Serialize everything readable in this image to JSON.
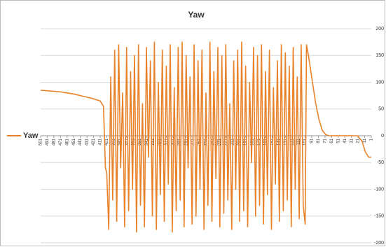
{
  "chart_data": {
    "type": "line",
    "title": "Yaw",
    "x": [
      501,
      491,
      481,
      471,
      461,
      451,
      441,
      431,
      421,
      411,
      406,
      403,
      401,
      398,
      395,
      392,
      389,
      386,
      383,
      380,
      377,
      374,
      371,
      368,
      365,
      362,
      359,
      356,
      353,
      350,
      347,
      344,
      341,
      338,
      335,
      332,
      329,
      326,
      323,
      320,
      317,
      314,
      311,
      308,
      305,
      302,
      299,
      296,
      293,
      290,
      287,
      284,
      281,
      278,
      275,
      272,
      269,
      266,
      263,
      260,
      257,
      254,
      251,
      248,
      245,
      242,
      239,
      236,
      233,
      230,
      227,
      224,
      221,
      218,
      215,
      212,
      209,
      206,
      203,
      200,
      197,
      194,
      191,
      188,
      185,
      182,
      179,
      176,
      173,
      170,
      167,
      164,
      161,
      158,
      155,
      152,
      149,
      146,
      143,
      140,
      137,
      134,
      131,
      128,
      125,
      122,
      119,
      116,
      113,
      110,
      107,
      104,
      101,
      99,
      96,
      90,
      85,
      80,
      75,
      70,
      65,
      50,
      30,
      22,
      15,
      10,
      5,
      1
    ],
    "series": [
      {
        "name": "Yaw",
        "color": "#e8822a",
        "values": [
          85,
          84,
          83,
          82,
          80,
          78,
          75,
          72,
          69,
          65,
          55,
          -60,
          -70,
          -175,
          110,
          -120,
          160,
          -160,
          170,
          -60,
          80,
          -170,
          165,
          -140,
          120,
          -100,
          150,
          -180,
          170,
          -130,
          60,
          -170,
          165,
          -40,
          140,
          -150,
          175,
          -175,
          100,
          -110,
          160,
          -160,
          130,
          -90,
          170,
          -180,
          90,
          -140,
          165,
          -120,
          175,
          -170,
          150,
          -60,
          110,
          -165,
          170,
          -150,
          140,
          -100,
          160,
          -175,
          80,
          -130,
          175,
          -160,
          120,
          -80,
          165,
          -170,
          150,
          -145,
          170,
          -120,
          60,
          -175,
          140,
          -100,
          160,
          -160,
          175,
          -140,
          130,
          -170,
          100,
          -50,
          165,
          -150,
          150,
          -130,
          170,
          -165,
          120,
          -110,
          160,
          -175,
          90,
          -90,
          140,
          -160,
          170,
          -140,
          155,
          -120,
          130,
          -170,
          165,
          -100,
          110,
          -155,
          170,
          -130,
          -165,
          170,
          150,
          100,
          60,
          30,
          10,
          2,
          0,
          0,
          0,
          0,
          -10,
          -30,
          -40,
          -40
        ]
      }
    ],
    "xlim": [
      501,
      1
    ],
    "xticks": [
      501,
      491,
      481,
      471,
      461,
      451,
      441,
      431,
      421,
      411,
      401,
      391,
      381,
      371,
      361,
      351,
      341,
      331,
      321,
      311,
      301,
      291,
      281,
      271,
      261,
      251,
      241,
      231,
      221,
      211,
      201,
      191,
      181,
      171,
      161,
      151,
      141,
      131,
      121,
      111,
      101,
      91,
      81,
      71,
      61,
      51,
      41,
      31,
      21,
      11,
      1
    ],
    "ylim": [
      -200,
      200
    ],
    "yticks": [
      -200,
      -150,
      -100,
      -50,
      0,
      50,
      100,
      150,
      200
    ],
    "grid": true,
    "legend": "left"
  }
}
